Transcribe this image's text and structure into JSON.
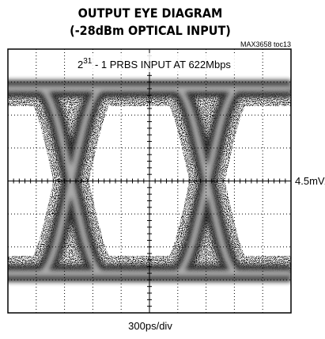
{
  "header": {
    "title_line1": "OUTPUT EYE DIAGRAM",
    "title_line2": "(-28dBm OPTICAL INPUT)",
    "part": "MAX3658 toc13"
  },
  "annotation": {
    "base": "2",
    "exponent": "31",
    "rest": " - 1 PRBS INPUT AT 622Mbps"
  },
  "scale": {
    "vertical": "4.5mV/div",
    "horizontal": "300ps/div"
  }
}
